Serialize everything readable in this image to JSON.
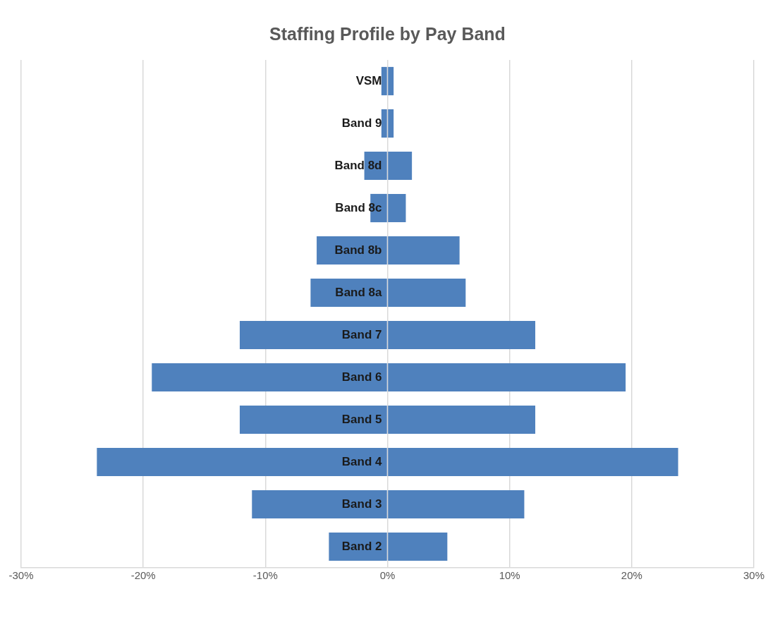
{
  "chart_data": {
    "type": "bar",
    "orientation": "horizontal",
    "stacked": true,
    "title": "Staffing Profile by Pay Band",
    "categories": [
      "VSM",
      "Band 9",
      "Band 8d",
      "Band 8c",
      "Band 8b",
      "Band 8a",
      "Band 7",
      "Band 6",
      "Band 5",
      "Band 4",
      "Band 3",
      "Band 2"
    ],
    "series": [
      {
        "color": "#4f81bd",
        "values": [
          -0.5,
          -0.5,
          -1.9,
          -1.4,
          -5.8,
          -6.3,
          -12.1,
          -19.3,
          -12.1,
          -23.8,
          -11.1,
          -4.8
        ]
      },
      {
        "color": "#4f81bd",
        "values": [
          0.5,
          0.5,
          2.0,
          1.5,
          5.9,
          6.4,
          12.1,
          19.5,
          12.1,
          23.8,
          11.2,
          4.9
        ]
      }
    ],
    "xlim": [
      -30,
      30
    ],
    "xticks": [
      {
        "value": -30,
        "label": "-30%"
      },
      {
        "value": -20,
        "label": "-20%"
      },
      {
        "value": -10,
        "label": "-10%"
      },
      {
        "value": 0,
        "label": "0%"
      },
      {
        "value": 10,
        "label": "10%"
      },
      {
        "value": 20,
        "label": "20%"
      },
      {
        "value": 30,
        "label": "30%"
      }
    ],
    "grid": "x",
    "legend": false
  }
}
